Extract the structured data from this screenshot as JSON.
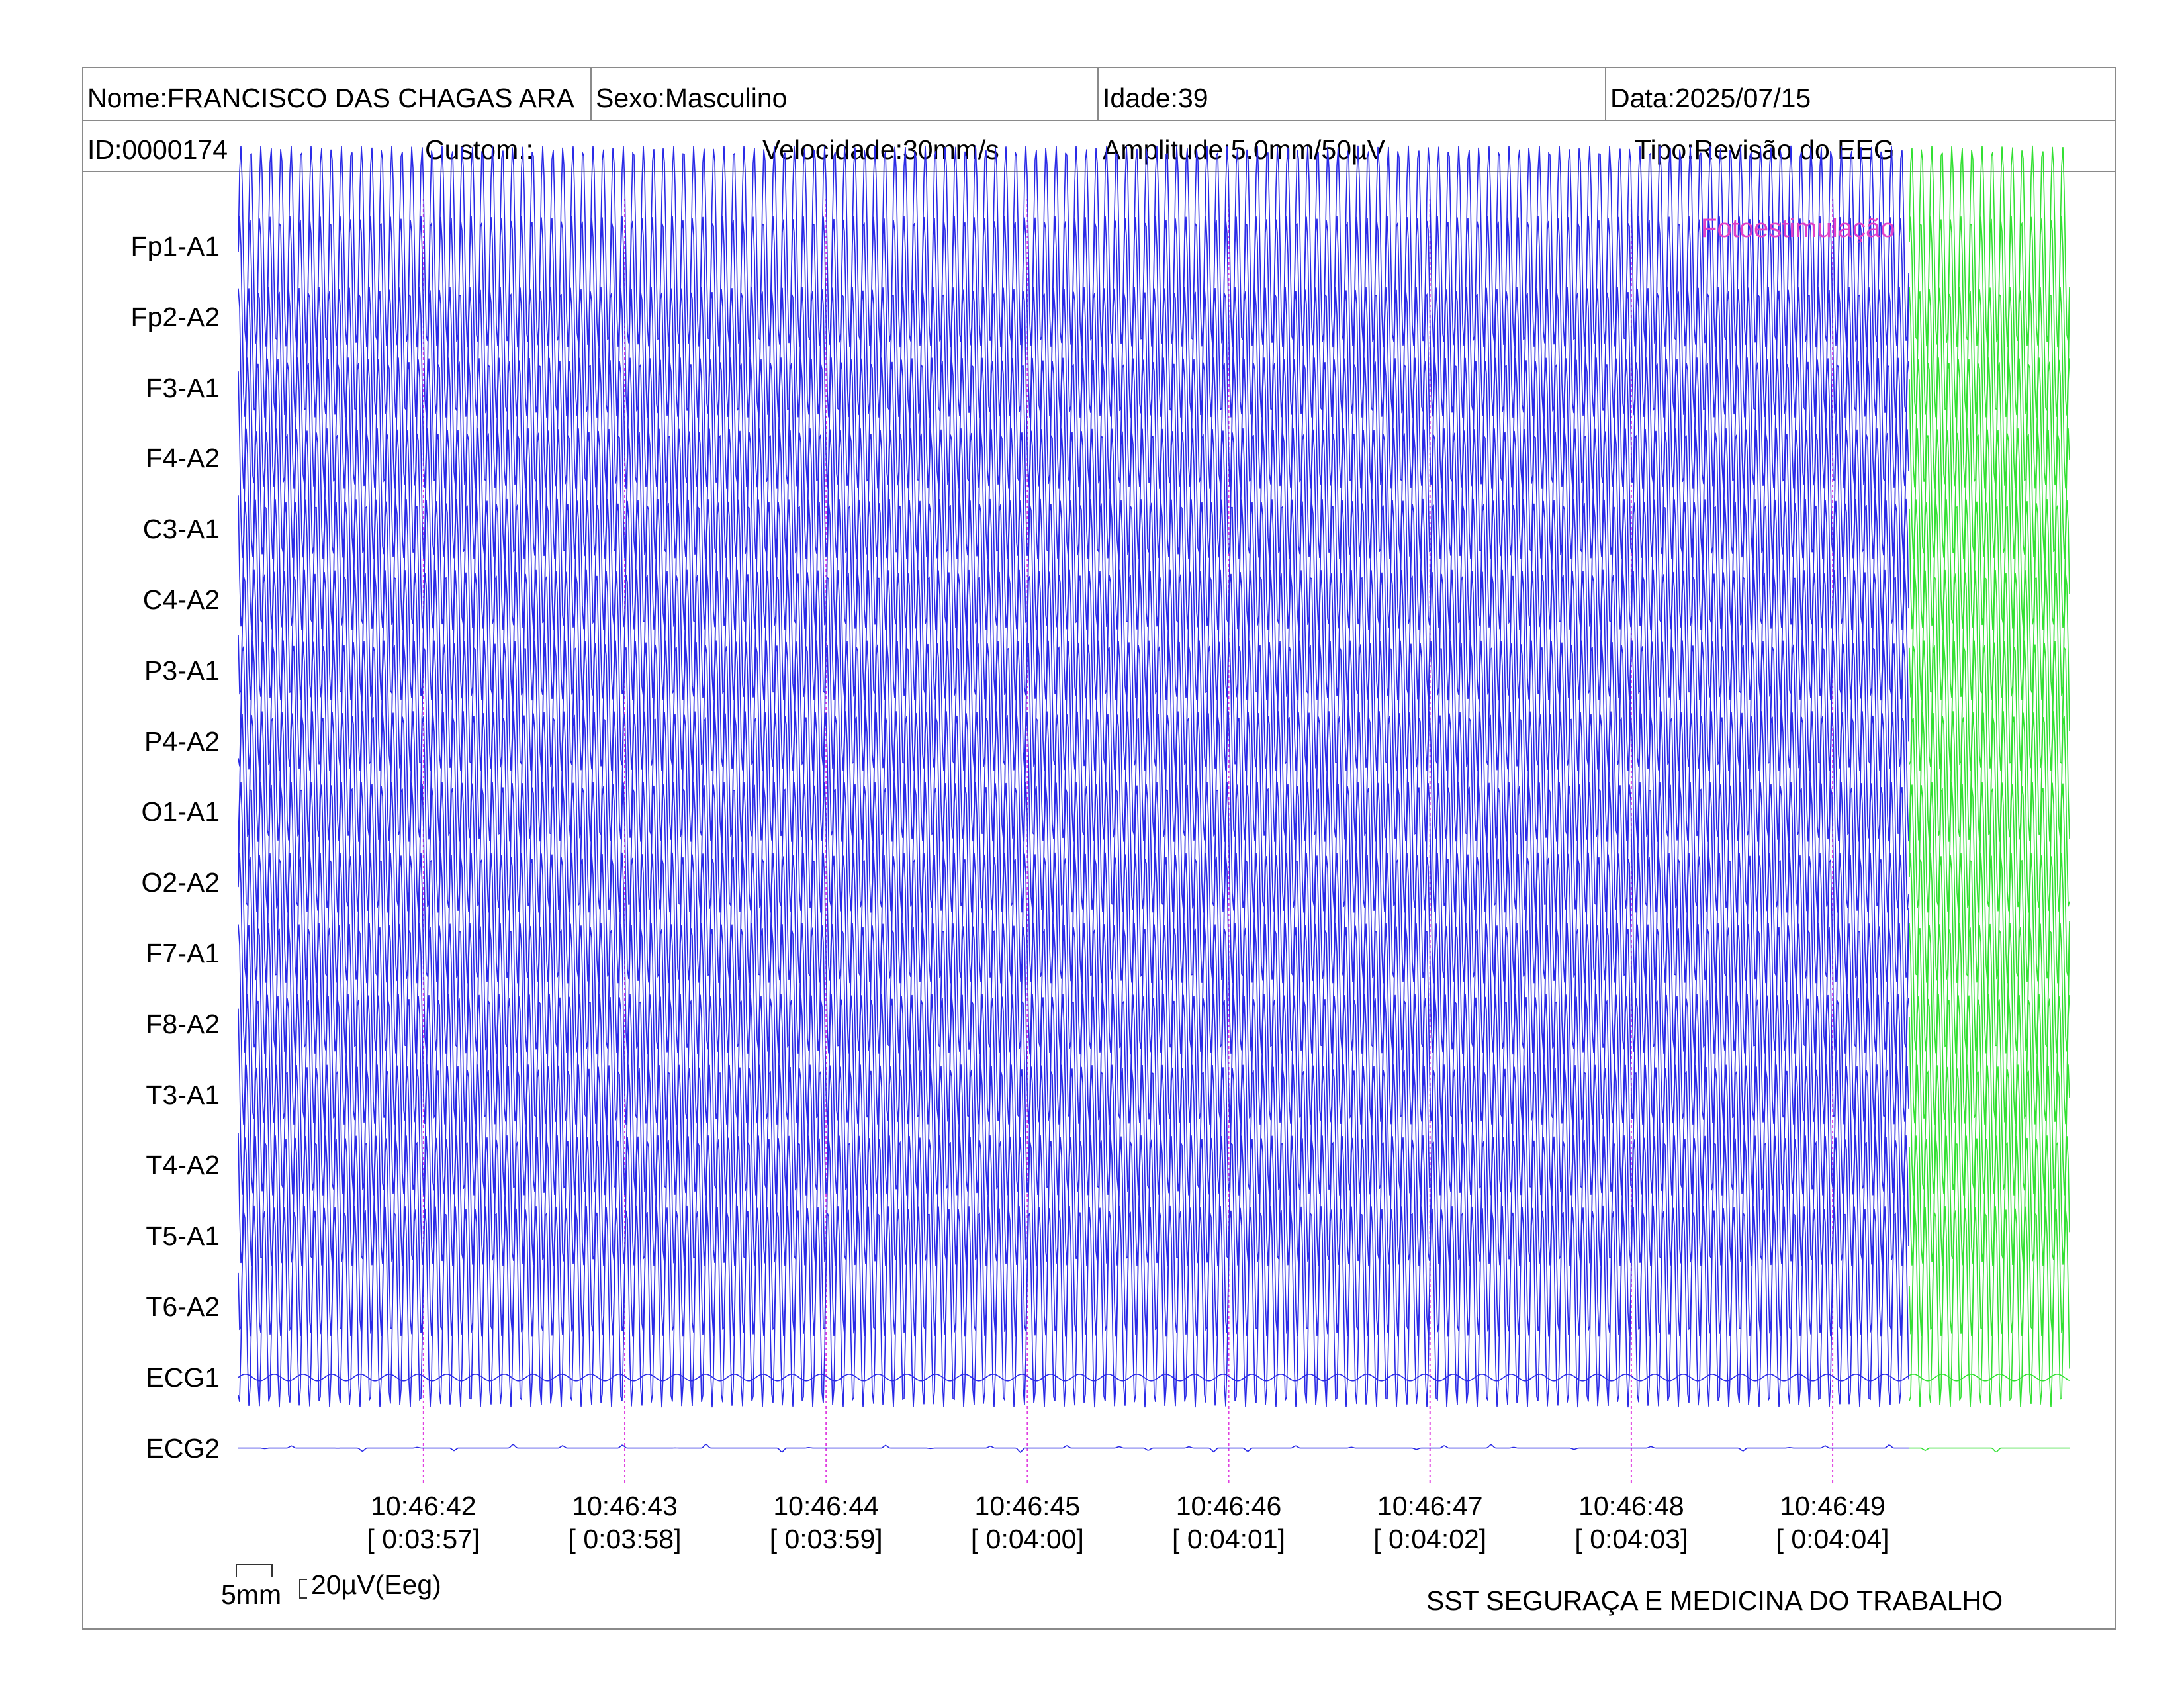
{
  "header": {
    "name": "Nome:FRANCISCO DAS CHAGAS ARA",
    "sex": "Sexo:Masculino",
    "age": "Idade:39",
    "date": "Data:2025/07/15",
    "id": "ID:0000174",
    "custom": "Custom.:",
    "speed": "Velocidade:30mm/s",
    "amplitude": "Amplitude:5.0mm/50µV",
    "type": "Tipo:Revisão do EEG"
  },
  "annotation": {
    "text": "Fotoestimulação",
    "color": "#e040c8"
  },
  "footer": {
    "scale_time": "5mm",
    "scale_amp": "20µV(Eeg)",
    "company": "SST SEGURAÇA E MEDICINA DO TRABALHO"
  },
  "colors": {
    "trace_normal": "#2a2ae6",
    "trace_stim": "#33e033",
    "time_marker": "#e040e0",
    "frame": "#8a8a8a"
  },
  "chart_data": {
    "type": "line",
    "channels": [
      "Fp1-A1",
      "Fp2-A2",
      "F3-A1",
      "F4-A2",
      "C3-A1",
      "C4-A2",
      "P3-A1",
      "P4-A2",
      "O1-A1",
      "O2-A2",
      "F7-A1",
      "F8-A2",
      "T3-A1",
      "T4-A2",
      "T5-A1",
      "T6-A2",
      "ECG1",
      "ECG2"
    ],
    "time_ticks": [
      {
        "clock": "10:46:42",
        "elapsed": "[ 0:03:57]"
      },
      {
        "clock": "10:46:43",
        "elapsed": "[ 0:03:58]"
      },
      {
        "clock": "10:46:44",
        "elapsed": "[ 0:03:59]"
      },
      {
        "clock": "10:46:45",
        "elapsed": "[ 0:04:00]"
      },
      {
        "clock": "10:46:46",
        "elapsed": "[ 0:04:01]"
      },
      {
        "clock": "10:46:47",
        "elapsed": "[ 0:04:02]"
      },
      {
        "clock": "10:46:48",
        "elapsed": "[ 0:04:03]"
      },
      {
        "clock": "10:46:49",
        "elapsed": "[ 0:04:04]"
      }
    ],
    "x_start_s": 0,
    "x_end_s": 9.1,
    "first_tick_s": 0.92,
    "photic_stimulation_start_s": 8.3,
    "eeg_waveform": "sinusoid",
    "eeg_frequency_hz": 20,
    "eeg_amplitude_mm_peak_to_peak": 30,
    "ecg1_waveform": "low-amplitude oscillation",
    "ecg2_waveform": "flat baseline with small spikes",
    "speed_mm_per_s": 30
  }
}
